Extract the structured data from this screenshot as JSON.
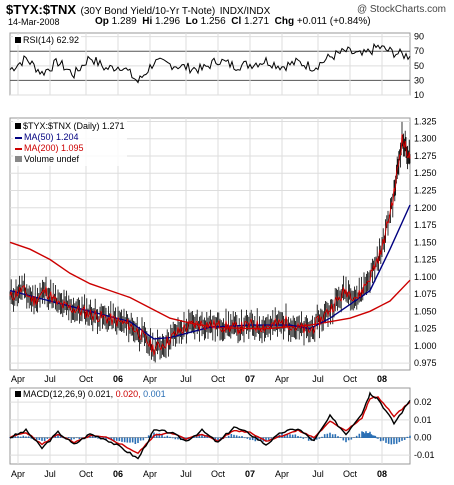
{
  "header": {
    "symbol": "$TYX:$TNX",
    "description": "(30Y Bond Yield/10-Yr T-Note)",
    "exchange": "INDX/INDX",
    "watermark": "@ StockCharts.com",
    "date": "14-Mar-2008",
    "op_label": "Op",
    "op_value": "1.289",
    "hi_label": "Hi",
    "hi_value": "1.296",
    "lo_label": "Lo",
    "lo_value": "1.256",
    "cl_label": "Cl",
    "cl_value": "1.271",
    "chg_label": "Chg",
    "chg_value": "+0.011 (+0.84%)"
  },
  "colors": {
    "price": "#cc0000",
    "ma50": "#000080",
    "ma200": "#cc0000",
    "rsi": "#000000",
    "macd": "#000000",
    "signal": "#cc0000",
    "histogram": "#2a6fb5",
    "grid": "#dddddd",
    "pricebar": "#000000"
  },
  "legend": {
    "main": "$TYX:$TNX (Daily) 1.271",
    "ma50": "MA(50) 1.204",
    "ma200": "MA(200) 1.095",
    "volume": "Volume undef"
  },
  "rsi_panel": {
    "label": "RSI(14) 62.92"
  },
  "macd_panel": {
    "label_prefix": "MACD(12,26,9)",
    "macd_value": "0.021,",
    "signal_value": "0.020,",
    "hist_value": "0.001"
  },
  "chart_data": [
    {
      "type": "line",
      "panel": "rsi",
      "series_label": "RSI(14) 62.92",
      "ylim": [
        10,
        95
      ],
      "y_ticks": [
        10,
        30,
        50,
        70,
        90
      ],
      "reference_lines": [
        30,
        70
      ],
      "x": [
        0,
        4,
        8,
        12,
        16,
        20,
        24,
        28,
        32,
        36,
        40,
        44,
        48,
        52,
        56,
        60,
        64,
        68,
        72,
        76,
        80,
        84,
        88,
        92,
        96,
        100
      ],
      "values": [
        45,
        60,
        40,
        55,
        38,
        62,
        46,
        50,
        28,
        55,
        52,
        48,
        45,
        58,
        50,
        52,
        57,
        49,
        55,
        48,
        62,
        70,
        64,
        76,
        68,
        63
      ]
    },
    {
      "type": "line",
      "panel": "price",
      "title": "$TYX:$TNX (Daily) 1.271",
      "ylim": [
        0.965,
        1.33
      ],
      "y_ticks": [
        "0.975",
        "1.000",
        "1.025",
        "1.050",
        "1.075",
        "1.100",
        "1.125",
        "1.150",
        "1.175",
        "1.200",
        "1.225",
        "1.250",
        "1.275",
        "1.300",
        "1.325"
      ],
      "x_ticks": [
        "Apr",
        "Jul",
        "Oct",
        "06",
        "Apr",
        "Jul",
        "Oct",
        "07",
        "Apr",
        "Jul",
        "Oct",
        "08"
      ],
      "x": [
        0,
        3,
        6,
        9,
        12,
        15,
        18,
        21,
        24,
        27,
        30,
        33,
        36,
        39,
        42,
        45,
        48,
        51,
        54,
        57,
        60,
        63,
        66,
        69,
        72,
        75,
        78,
        81,
        84,
        87,
        90,
        93,
        96,
        98,
        100
      ],
      "values": [
        1.07,
        1.082,
        1.065,
        1.08,
        1.06,
        1.055,
        1.05,
        1.045,
        1.04,
        1.035,
        1.03,
        1.015,
        0.995,
        1.005,
        1.02,
        1.03,
        1.032,
        1.03,
        1.028,
        1.025,
        1.03,
        1.028,
        1.03,
        1.035,
        1.025,
        1.022,
        1.04,
        1.06,
        1.08,
        1.07,
        1.1,
        1.14,
        1.22,
        1.3,
        1.271
      ],
      "series": [
        {
          "name": "MA(50) 1.204",
          "x": [
            0,
            10,
            20,
            30,
            36,
            40,
            50,
            60,
            70,
            75,
            80,
            85,
            90,
            95,
            100
          ],
          "values": [
            1.08,
            1.065,
            1.05,
            1.035,
            1.01,
            1.012,
            1.027,
            1.03,
            1.03,
            1.025,
            1.04,
            1.06,
            1.08,
            1.14,
            1.204
          ]
        },
        {
          "name": "MA(200) 1.095",
          "x": [
            0,
            5,
            10,
            15,
            20,
            25,
            30,
            35,
            40,
            45,
            50,
            55,
            60,
            65,
            70,
            75,
            80,
            85,
            90,
            95,
            100
          ],
          "values": [
            1.15,
            1.14,
            1.125,
            1.105,
            1.09,
            1.08,
            1.07,
            1.055,
            1.04,
            1.033,
            1.028,
            1.026,
            1.025,
            1.025,
            1.028,
            1.03,
            1.035,
            1.04,
            1.05,
            1.065,
            1.095
          ]
        }
      ]
    },
    {
      "type": "line",
      "panel": "macd",
      "series_label": "MACD(12,26,9) 0.021, 0.020, 0.001",
      "ylim": [
        -0.015,
        0.028
      ],
      "y_ticks": [
        "-0.01",
        "0.00",
        "0.01",
        "0.02"
      ],
      "x_ticks": [
        "Apr",
        "Jul",
        "Oct",
        "06",
        "Apr",
        "Jul",
        "Oct",
        "07",
        "Apr",
        "Jul",
        "Oct",
        "08"
      ],
      "x": [
        0,
        4,
        8,
        12,
        16,
        20,
        24,
        28,
        32,
        36,
        40,
        44,
        48,
        52,
        56,
        60,
        64,
        68,
        72,
        76,
        80,
        84,
        88,
        90,
        92,
        96,
        100
      ],
      "series": [
        {
          "name": "MACD",
          "values": [
            0,
            0.004,
            -0.006,
            0.003,
            -0.004,
            0.002,
            -0.001,
            -0.006,
            -0.012,
            0.004,
            0.003,
            -0.002,
            0.004,
            -0.003,
            0.006,
            0.002,
            -0.004,
            0.003,
            0.005,
            -0.002,
            0.012,
            0.002,
            0.014,
            0.025,
            0.022,
            0.008,
            0.021
          ]
        },
        {
          "name": "Signal",
          "values": [
            0,
            0.003,
            -0.004,
            0.002,
            -0.003,
            0.001,
            0,
            -0.004,
            -0.009,
            0.001,
            0.003,
            -0.001,
            0.002,
            -0.002,
            0.004,
            0.003,
            -0.002,
            0.001,
            0.004,
            0,
            0.009,
            0.004,
            0.011,
            0.022,
            0.023,
            0.012,
            0.02
          ]
        },
        {
          "name": "Histogram",
          "values": [
            0,
            0.001,
            -0.002,
            0.001,
            -0.001,
            0.001,
            -0.001,
            -0.002,
            -0.003,
            0.003,
            0,
            -0.001,
            0.002,
            -0.001,
            0.002,
            -0.001,
            -0.002,
            0.002,
            0.001,
            -0.002,
            0.003,
            -0.002,
            0.003,
            0.003,
            -0.001,
            -0.004,
            0.001
          ]
        }
      ]
    }
  ]
}
